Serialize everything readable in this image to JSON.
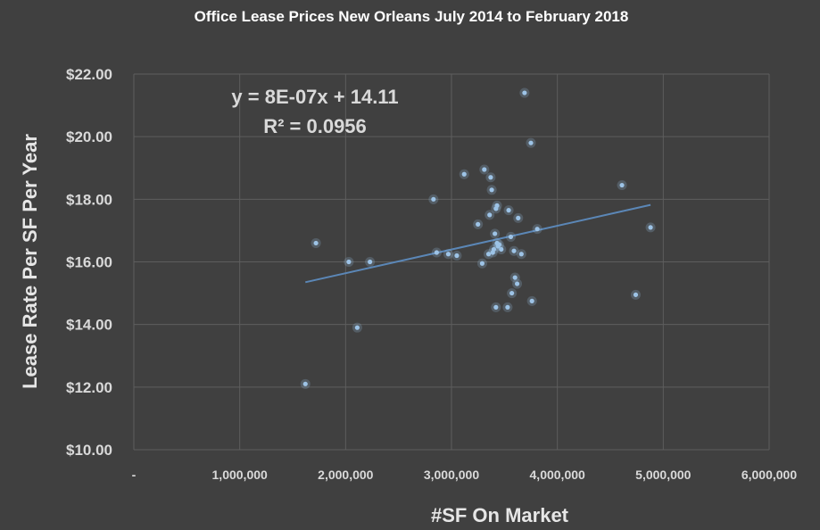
{
  "chart_data": {
    "type": "scatter",
    "title": "Office Lease Prices New Orleans July 2014 to February 2018",
    "xlabel": "#SF On Market",
    "ylabel": "Lease Rate Per SF Per Year",
    "xlim": [
      0,
      6000000
    ],
    "ylim": [
      10,
      22
    ],
    "x_ticks": [
      0,
      1000000,
      2000000,
      3000000,
      4000000,
      5000000,
      6000000
    ],
    "x_tick_labels": [
      "-",
      "1,000,000",
      "2,000,000",
      "3,000,000",
      "4,000,000",
      "5,000,000",
      "6,000,000"
    ],
    "y_ticks": [
      10,
      12,
      14,
      16,
      18,
      20,
      22
    ],
    "y_tick_labels": [
      "$10.00",
      "$12.00",
      "$14.00",
      "$16.00",
      "$18.00",
      "$20.00",
      "$22.00"
    ],
    "grid": true,
    "trendline": {
      "type": "linear",
      "x": [
        1620000,
        4880000
      ],
      "y": [
        15.35,
        17.82
      ]
    },
    "equation_text": "y = 8E-07x + 14.11",
    "r2_text": "R² = 0.0956",
    "series": [
      {
        "points": [
          [
            1620000,
            12.1
          ],
          [
            1720000,
            16.6
          ],
          [
            2030000,
            16.0
          ],
          [
            2110000,
            13.9
          ],
          [
            2230000,
            16.0
          ],
          [
            2830000,
            18.0
          ],
          [
            2860000,
            16.3
          ],
          [
            2970000,
            16.25
          ],
          [
            3050000,
            16.2
          ],
          [
            3120000,
            18.8
          ],
          [
            3250000,
            17.2
          ],
          [
            3290000,
            15.95
          ],
          [
            3310000,
            18.95
          ],
          [
            3350000,
            16.25
          ],
          [
            3360000,
            17.5
          ],
          [
            3370000,
            18.7
          ],
          [
            3380000,
            18.3
          ],
          [
            3390000,
            16.3
          ],
          [
            3400000,
            16.4
          ],
          [
            3410000,
            16.9
          ],
          [
            3420000,
            17.7
          ],
          [
            3420000,
            14.55
          ],
          [
            3430000,
            16.6
          ],
          [
            3430000,
            17.8
          ],
          [
            3440000,
            16.5
          ],
          [
            3450000,
            16.55
          ],
          [
            3470000,
            16.4
          ],
          [
            3530000,
            14.55
          ],
          [
            3540000,
            17.65
          ],
          [
            3560000,
            16.8
          ],
          [
            3570000,
            15.0
          ],
          [
            3590000,
            16.35
          ],
          [
            3600000,
            15.5
          ],
          [
            3620000,
            15.3
          ],
          [
            3630000,
            17.4
          ],
          [
            3660000,
            16.25
          ],
          [
            3690000,
            21.4
          ],
          [
            3750000,
            19.8
          ],
          [
            3760000,
            14.75
          ],
          [
            3810000,
            17.05
          ],
          [
            4610000,
            18.45
          ],
          [
            4740000,
            14.95
          ],
          [
            4880000,
            17.1
          ]
        ]
      }
    ]
  }
}
